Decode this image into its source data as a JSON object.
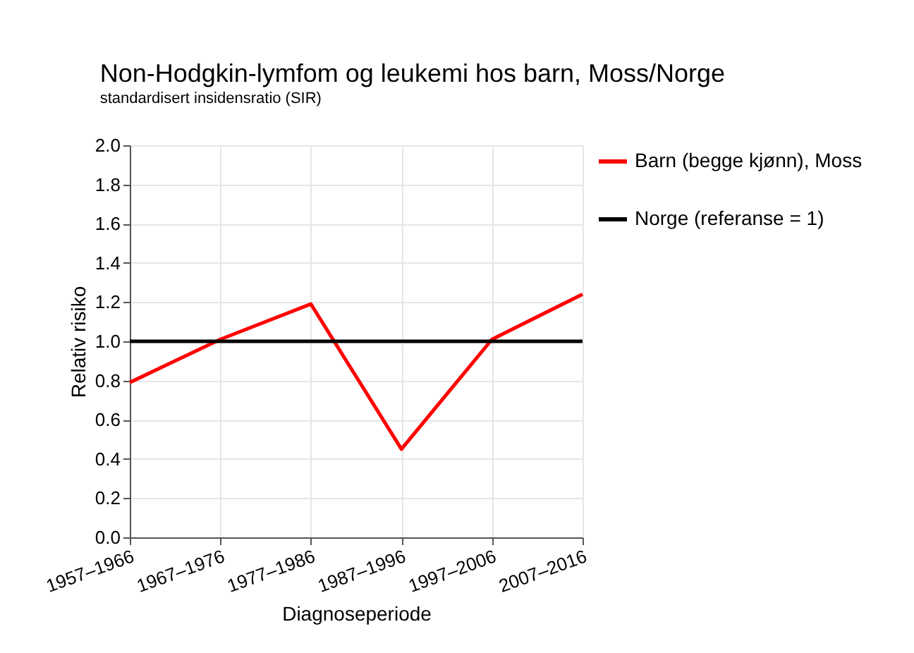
{
  "chart_data": {
    "type": "line",
    "title": "Non-Hodgkin-lymfom og leukemi hos barn, Moss/Norge",
    "subtitle": "standardisert insidensratio (SIR)",
    "xlabel": "Diagnoseperiode",
    "ylabel": "Relativ risiko",
    "categories": [
      "1957–1966",
      "1967–1976",
      "1977–1986",
      "1987–1996",
      "1997–2006",
      "2007–2016"
    ],
    "series": [
      {
        "name": "Barn (begge kjønn), Moss",
        "color": "#ff0000",
        "values": [
          0.79,
          1.01,
          1.19,
          0.45,
          1.01,
          1.24
        ]
      },
      {
        "name": "Norge (referanse = 1)",
        "color": "#000000",
        "values": [
          1,
          1,
          1,
          1,
          1,
          1
        ]
      }
    ],
    "ylim": [
      0,
      2
    ],
    "yticks": [
      {
        "value": 0,
        "label": "0.0"
      },
      {
        "value": 0.2,
        "label": "0.2"
      },
      {
        "value": 0.4,
        "label": "0.4"
      },
      {
        "value": 0.6,
        "label": "0.6"
      },
      {
        "value": 0.8,
        "label": "0.8"
      },
      {
        "value": 1,
        "label": "1.0"
      },
      {
        "value": 1.2,
        "label": "1.2"
      },
      {
        "value": 1.4,
        "label": "1.4"
      },
      {
        "value": 1.6,
        "label": "1.6"
      },
      {
        "value": 1.8,
        "label": "1.8"
      },
      {
        "value": 2,
        "label": "2.0"
      }
    ],
    "grid": true,
    "legend": "right",
    "marker": "none",
    "line_style": "solid"
  }
}
